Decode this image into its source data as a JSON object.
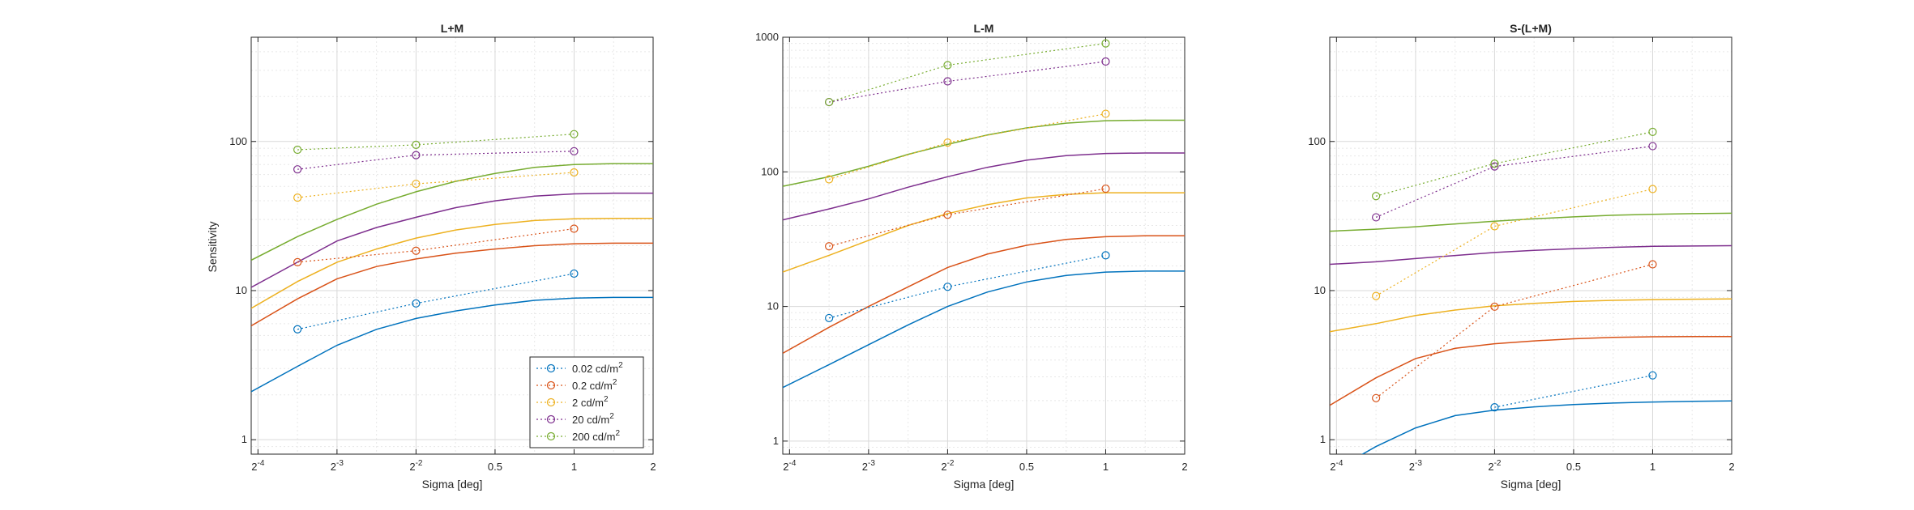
{
  "colors": {
    "series": [
      "#0072BD",
      "#D95319",
      "#EDB120",
      "#7E2F8E",
      "#77AC30"
    ],
    "grid_major": "#d9d9d9",
    "grid_minor": "#e8e8e8",
    "axis": "#262626"
  },
  "chart_data": [
    {
      "type": "line",
      "title": "L+M",
      "xlabel": "Sigma [deg]",
      "ylabel": "Sensitivity",
      "xscale": "log2",
      "yscale": "log10",
      "xlim": [
        0.0589,
        2
      ],
      "ylim": [
        0.8,
        500
      ],
      "xticks": [
        0.0625,
        0.125,
        0.25,
        0.5,
        1,
        2
      ],
      "xticklabels": [
        {
          "base": "2",
          "exp": "-4"
        },
        {
          "base": "2",
          "exp": "-3"
        },
        {
          "base": "2",
          "exp": "-2"
        },
        {
          "base": "0.5",
          "exp": ""
        },
        {
          "base": "1",
          "exp": ""
        },
        {
          "base": "2",
          "exp": ""
        }
      ],
      "yticks": [
        1,
        10,
        100
      ],
      "yticklabels": [
        "1",
        "10",
        "100"
      ],
      "grid": true,
      "legend": "bottom-right",
      "series": [
        {
          "name": "0.02 cd/m",
          "sup": "2",
          "x": [
            0.0884,
            0.25,
            1
          ],
          "y": [
            5.5,
            8.2,
            13
          ]
        },
        {
          "name": "0.2 cd/m",
          "sup": "2",
          "x": [
            0.0884,
            0.25,
            1
          ],
          "y": [
            15.5,
            18.5,
            26
          ]
        },
        {
          "name": "2 cd/m",
          "sup": "2",
          "x": [
            0.0884,
            0.25,
            1
          ],
          "y": [
            42,
            52,
            62
          ]
        },
        {
          "name": "20 cd/m",
          "sup": "2",
          "x": [
            0.0884,
            0.25,
            1
          ],
          "y": [
            65,
            81,
            86
          ]
        },
        {
          "name": "200 cd/m",
          "sup": "2",
          "x": [
            0.0884,
            0.25,
            1
          ],
          "y": [
            88,
            95,
            112
          ]
        }
      ],
      "fits": [
        {
          "x": [
            0.0589,
            0.0884,
            0.125,
            0.177,
            0.25,
            0.354,
            0.5,
            0.707,
            1,
            1.414,
            2
          ],
          "y": [
            2.1,
            3.1,
            4.3,
            5.5,
            6.5,
            7.3,
            8.0,
            8.6,
            8.9,
            9.0,
            9.0
          ]
        },
        {
          "x": [
            0.0589,
            0.0884,
            0.125,
            0.177,
            0.25,
            0.354,
            0.5,
            0.707,
            1,
            1.414,
            2
          ],
          "y": [
            5.8,
            8.8,
            12.0,
            14.5,
            16.3,
            17.8,
            19.0,
            20.0,
            20.6,
            20.8,
            20.8
          ]
        },
        {
          "x": [
            0.0589,
            0.0884,
            0.125,
            0.177,
            0.25,
            0.354,
            0.5,
            0.707,
            1,
            1.414,
            2
          ],
          "y": [
            7.6,
            11.5,
            15.5,
            19.0,
            22.5,
            25.5,
            27.8,
            29.5,
            30.3,
            30.5,
            30.5
          ]
        },
        {
          "x": [
            0.0589,
            0.0884,
            0.125,
            0.177,
            0.25,
            0.354,
            0.5,
            0.707,
            1,
            1.414,
            2
          ],
          "y": [
            10.5,
            15.5,
            21.5,
            26.5,
            31.0,
            36.0,
            40.0,
            43.0,
            44.5,
            45.0,
            45.0
          ]
        },
        {
          "x": [
            0.0589,
            0.0884,
            0.125,
            0.177,
            0.25,
            0.354,
            0.5,
            0.707,
            1,
            1.414,
            2
          ],
          "y": [
            16,
            23,
            30,
            38,
            46,
            54,
            61,
            67,
            70,
            71,
            71
          ]
        }
      ]
    },
    {
      "type": "line",
      "title": "L-M",
      "xlabel": "Sigma [deg]",
      "ylabel": "",
      "xscale": "log2",
      "yscale": "log10",
      "xlim": [
        0.0589,
        2
      ],
      "ylim": [
        0.8,
        1000
      ],
      "xticks": [
        0.0625,
        0.125,
        0.25,
        0.5,
        1,
        2
      ],
      "xticklabels": [
        {
          "base": "2",
          "exp": "-4"
        },
        {
          "base": "2",
          "exp": "-3"
        },
        {
          "base": "2",
          "exp": "-2"
        },
        {
          "base": "0.5",
          "exp": ""
        },
        {
          "base": "1",
          "exp": ""
        },
        {
          "base": "2",
          "exp": ""
        }
      ],
      "yticks": [
        1,
        10,
        100,
        1000
      ],
      "yticklabels": [
        "1",
        "10",
        "100",
        "1000"
      ],
      "grid": true,
      "legend": "none",
      "series": [
        {
          "name": "0.02 cd/m",
          "sup": "2",
          "x": [
            0.0884,
            0.25,
            1
          ],
          "y": [
            8.2,
            14,
            24
          ]
        },
        {
          "name": "0.2 cd/m",
          "sup": "2",
          "x": [
            0.0884,
            0.25,
            1
          ],
          "y": [
            28,
            48,
            75
          ]
        },
        {
          "name": "2 cd/m",
          "sup": "2",
          "x": [
            0.0884,
            0.25,
            1
          ],
          "y": [
            88,
            165,
            270
          ]
        },
        {
          "name": "20 cd/m",
          "sup": "2",
          "x": [
            0.0884,
            0.25,
            1
          ],
          "y": [
            330,
            470,
            660
          ]
        },
        {
          "name": "200 cd/m",
          "sup": "2",
          "x": [
            0.0884,
            0.25,
            1
          ],
          "y": [
            330,
            620,
            900
          ]
        }
      ],
      "fits": [
        {
          "x": [
            0.0589,
            0.0884,
            0.125,
            0.177,
            0.25,
            0.354,
            0.5,
            0.707,
            1,
            1.414,
            2
          ],
          "y": [
            2.5,
            3.7,
            5.2,
            7.3,
            10,
            12.8,
            15.2,
            17.0,
            18.0,
            18.3,
            18.3
          ]
        },
        {
          "x": [
            0.0589,
            0.0884,
            0.125,
            0.177,
            0.25,
            0.354,
            0.5,
            0.707,
            1,
            1.414,
            2
          ],
          "y": [
            4.5,
            7.0,
            10,
            14,
            19.5,
            24.5,
            28.5,
            31.5,
            33,
            33.5,
            33.5
          ]
        },
        {
          "x": [
            0.0589,
            0.0884,
            0.125,
            0.177,
            0.25,
            0.354,
            0.5,
            0.707,
            1,
            1.414,
            2
          ],
          "y": [
            18,
            24,
            31,
            40,
            49,
            57,
            64,
            68,
            70,
            70,
            70
          ]
        },
        {
          "x": [
            0.0589,
            0.0884,
            0.125,
            0.177,
            0.25,
            0.354,
            0.5,
            0.707,
            1,
            1.414,
            2
          ],
          "y": [
            44,
            53,
            63,
            77,
            92,
            108,
            122,
            132,
            137,
            138,
            138
          ]
        },
        {
          "x": [
            0.0589,
            0.0884,
            0.125,
            0.177,
            0.25,
            0.354,
            0.5,
            0.707,
            1,
            1.414,
            2
          ],
          "y": [
            78,
            92,
            110,
            135,
            160,
            188,
            212,
            230,
            240,
            242,
            242
          ]
        }
      ]
    },
    {
      "type": "line",
      "title": "S-(L+M)",
      "xlabel": "Sigma [deg]",
      "ylabel": "",
      "xscale": "log2",
      "yscale": "log10",
      "xlim": [
        0.0589,
        2
      ],
      "ylim": [
        0.8,
        500
      ],
      "xticks": [
        0.0625,
        0.125,
        0.25,
        0.5,
        1,
        2
      ],
      "xticklabels": [
        {
          "base": "2",
          "exp": "-4"
        },
        {
          "base": "2",
          "exp": "-3"
        },
        {
          "base": "2",
          "exp": "-2"
        },
        {
          "base": "0.5",
          "exp": ""
        },
        {
          "base": "1",
          "exp": ""
        },
        {
          "base": "2",
          "exp": ""
        }
      ],
      "yticks": [
        1,
        10,
        100
      ],
      "yticklabels": [
        "1",
        "10",
        "100"
      ],
      "grid": true,
      "legend": "none",
      "series": [
        {
          "name": "0.02 cd/m",
          "sup": "2",
          "x": [
            0.25,
            1
          ],
          "y": [
            1.65,
            2.7
          ]
        },
        {
          "name": "0.2 cd/m",
          "sup": "2",
          "x": [
            0.0884,
            0.25,
            1
          ],
          "y": [
            1.9,
            7.8,
            15
          ]
        },
        {
          "name": "2 cd/m",
          "sup": "2",
          "x": [
            0.0884,
            0.25,
            1
          ],
          "y": [
            9.2,
            27,
            48
          ]
        },
        {
          "name": "20 cd/m",
          "sup": "2",
          "x": [
            0.0884,
            0.25,
            1
          ],
          "y": [
            31,
            68,
            93
          ]
        },
        {
          "name": "200 cd/m",
          "sup": "2",
          "x": [
            0.0884,
            0.25,
            1
          ],
          "y": [
            43,
            71,
            116
          ]
        }
      ],
      "fits": [
        {
          "x": [
            0.0589,
            0.0884,
            0.125,
            0.177,
            0.25,
            0.354,
            0.5,
            0.707,
            1,
            1.414,
            2
          ],
          "y": [
            0.6,
            0.9,
            1.2,
            1.45,
            1.58,
            1.66,
            1.72,
            1.76,
            1.79,
            1.81,
            1.82
          ]
        },
        {
          "x": [
            0.0589,
            0.0884,
            0.125,
            0.177,
            0.25,
            0.354,
            0.5,
            0.707,
            1,
            1.414,
            2
          ],
          "y": [
            1.7,
            2.6,
            3.5,
            4.1,
            4.4,
            4.6,
            4.75,
            4.85,
            4.9,
            4.92,
            4.92
          ]
        },
        {
          "x": [
            0.0589,
            0.0884,
            0.125,
            0.177,
            0.25,
            0.354,
            0.5,
            0.707,
            1,
            1.414,
            2
          ],
          "y": [
            5.3,
            6.0,
            6.8,
            7.4,
            7.9,
            8.2,
            8.45,
            8.6,
            8.7,
            8.75,
            8.8
          ]
        },
        {
          "x": [
            0.0589,
            0.0884,
            0.125,
            0.177,
            0.25,
            0.354,
            0.5,
            0.707,
            1,
            1.414,
            2
          ],
          "y": [
            15,
            15.6,
            16.4,
            17.2,
            18.0,
            18.6,
            19.1,
            19.5,
            19.8,
            19.9,
            20
          ]
        },
        {
          "x": [
            0.0589,
            0.0884,
            0.125,
            0.177,
            0.25,
            0.354,
            0.5,
            0.707,
            1,
            1.414,
            2
          ],
          "y": [
            25,
            25.8,
            26.8,
            28,
            29.2,
            30.3,
            31.2,
            32,
            32.5,
            32.8,
            33
          ]
        }
      ]
    }
  ]
}
